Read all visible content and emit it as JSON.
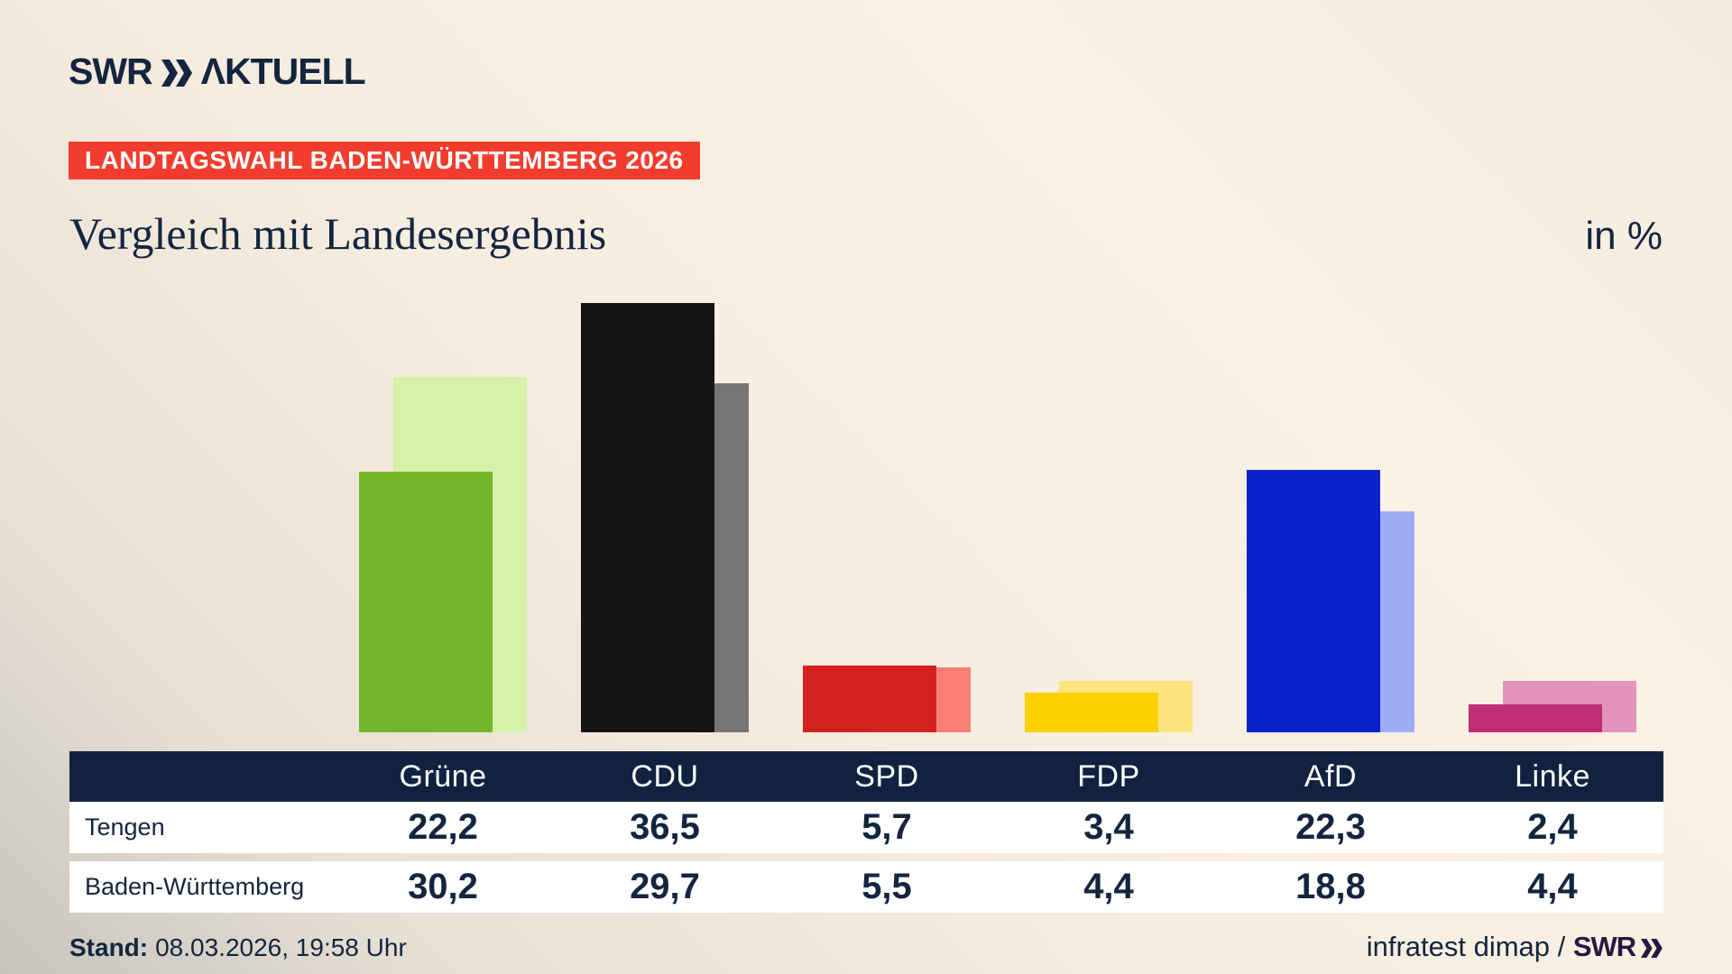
{
  "header": {
    "logo": {
      "swr": "SWR",
      "aktuell": "ΛKTUELL"
    },
    "badge": "LANDTAGSWAHL BADEN-WÜRTTEMBERG 2026",
    "title": "Vergleich mit Landesergebnis",
    "unit": "in %"
  },
  "chart_data": {
    "type": "bar",
    "title": "Vergleich mit Landesergebnis",
    "unit": "in %",
    "categories": [
      "Grüne",
      "CDU",
      "SPD",
      "FDP",
      "AfD",
      "Linke"
    ],
    "series": [
      {
        "name": "Tengen",
        "values": [
          22.2,
          36.5,
          5.7,
          3.4,
          22.3,
          2.4
        ]
      },
      {
        "name": "Baden-Württemberg",
        "values": [
          30.2,
          29.7,
          5.5,
          4.4,
          18.8,
          4.4
        ]
      }
    ],
    "ylim": [
      0,
      37
    ],
    "grid": false,
    "legend_position": "table-below-chart",
    "bar_colors": [
      {
        "id": "gruene",
        "party": "Grüne",
        "main": "#74b62a",
        "land": "#d7f1a8"
      },
      {
        "id": "cdu",
        "party": "CDU",
        "main": "#141414",
        "land": "#757575"
      },
      {
        "id": "spd",
        "party": "SPD",
        "main": "#d52221",
        "land": "#f97f76"
      },
      {
        "id": "fdp",
        "party": "FDP",
        "main": "#fdd000",
        "land": "#fbe37e"
      },
      {
        "id": "afd",
        "party": "AfD",
        "main": "#0b22ca",
        "land": "#9dacf6"
      },
      {
        "id": "linke",
        "party": "Linke",
        "main": "#bf2e74",
        "land": "#e294be"
      }
    ]
  },
  "footer": {
    "stand_label": "Stand:",
    "stand_value": "08.03.2026, 19:58 Uhr",
    "source": "infratest dimap / ",
    "source_logo": "SWR"
  },
  "colors": {
    "navy": "#13253f",
    "header_band": "#10223f",
    "badge_red": "#f23d2e",
    "swr_purple": "#2b1640",
    "row_bg": "#ffffff"
  }
}
